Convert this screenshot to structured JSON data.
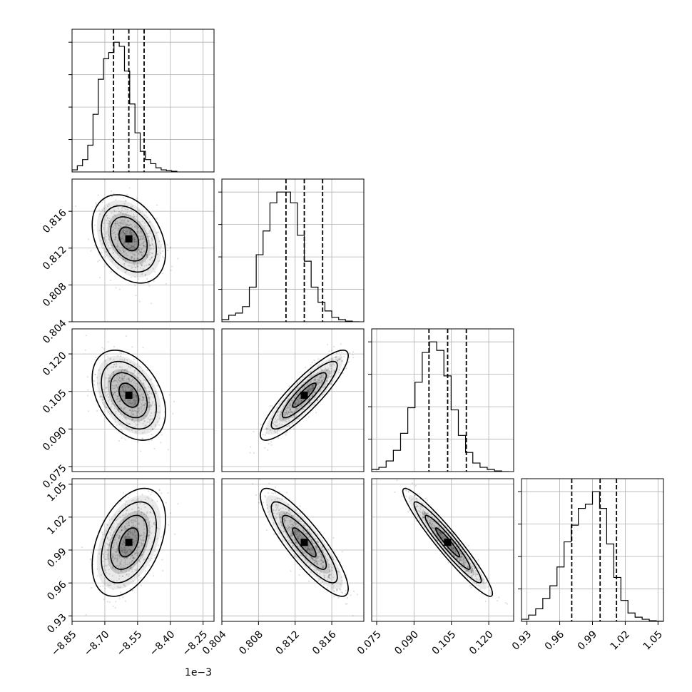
{
  "chart_data": {
    "type": "corner",
    "parameters": [
      {
        "range": [
          -8.85,
          -8.2
        ],
        "ticks": [
          -8.85,
          -8.7,
          -8.55,
          -8.4,
          -8.25
        ],
        "tick_labels": [
          "−8.85",
          "−8.70",
          "−8.55",
          "−8.40",
          "−8.25"
        ],
        "offset_label": "1e−3",
        "quantiles": [
          -8.66,
          -8.59,
          -8.52
        ],
        "hist_bin_width": 0.024,
        "hist": [
          1,
          3,
          6,
          13,
          28,
          45,
          55,
          58,
          63,
          61,
          49,
          33,
          19,
          10,
          6,
          4,
          2,
          1,
          0.6,
          0.3
        ]
      },
      {
        "range": [
          0.804,
          0.8195
        ],
        "ticks": [
          0.804,
          0.808,
          0.812,
          0.816
        ],
        "tick_labels": [
          "0.804",
          "0.808",
          "0.812",
          "0.816"
        ],
        "quantiles": [
          0.811,
          0.813,
          0.815
        ],
        "hist_bin_width": 0.00075,
        "hist": [
          1,
          3,
          4,
          7,
          16,
          31,
          42,
          55,
          60,
          60,
          55,
          40,
          28,
          16,
          9,
          5,
          2,
          1,
          0.3,
          0
        ]
      },
      {
        "range": [
          0.073,
          0.13
        ],
        "ticks": [
          0.075,
          0.09,
          0.105,
          0.12
        ],
        "tick_labels": [
          "0.075",
          "0.090",
          "0.105",
          "0.120"
        ],
        "quantiles": [
          0.096,
          0.1035,
          0.111
        ],
        "hist_bin_width": 0.0029,
        "hist": [
          1,
          2,
          5,
          10,
          18,
          30,
          42,
          56,
          61,
          57,
          45,
          29,
          17,
          9,
          4,
          2,
          1,
          0.3,
          0
        ]
      },
      {
        "range": [
          0.925,
          1.055
        ],
        "ticks": [
          0.93,
          0.96,
          0.99,
          1.02,
          1.05
        ],
        "tick_labels": [
          "0.93",
          "0.96",
          "0.99",
          "1.02",
          "1.05"
        ],
        "quantiles": [
          0.971,
          0.997,
          1.012
        ],
        "hist_bin_width": 0.0065,
        "hist": [
          1,
          3,
          6,
          11,
          17,
          26,
          38,
          46,
          54,
          56,
          62,
          54,
          37,
          21,
          10,
          4,
          2,
          1,
          0.3,
          0.1
        ]
      }
    ],
    "correlations": {
      "1-0": -0.32,
      "2-0": -0.38,
      "2-1": 0.88,
      "3-0": 0.42,
      "3-1": -0.86,
      "3-2": -0.95
    },
    "contour_levels": "sigma 0.5, 1, 1.5, 2",
    "grid": true
  }
}
